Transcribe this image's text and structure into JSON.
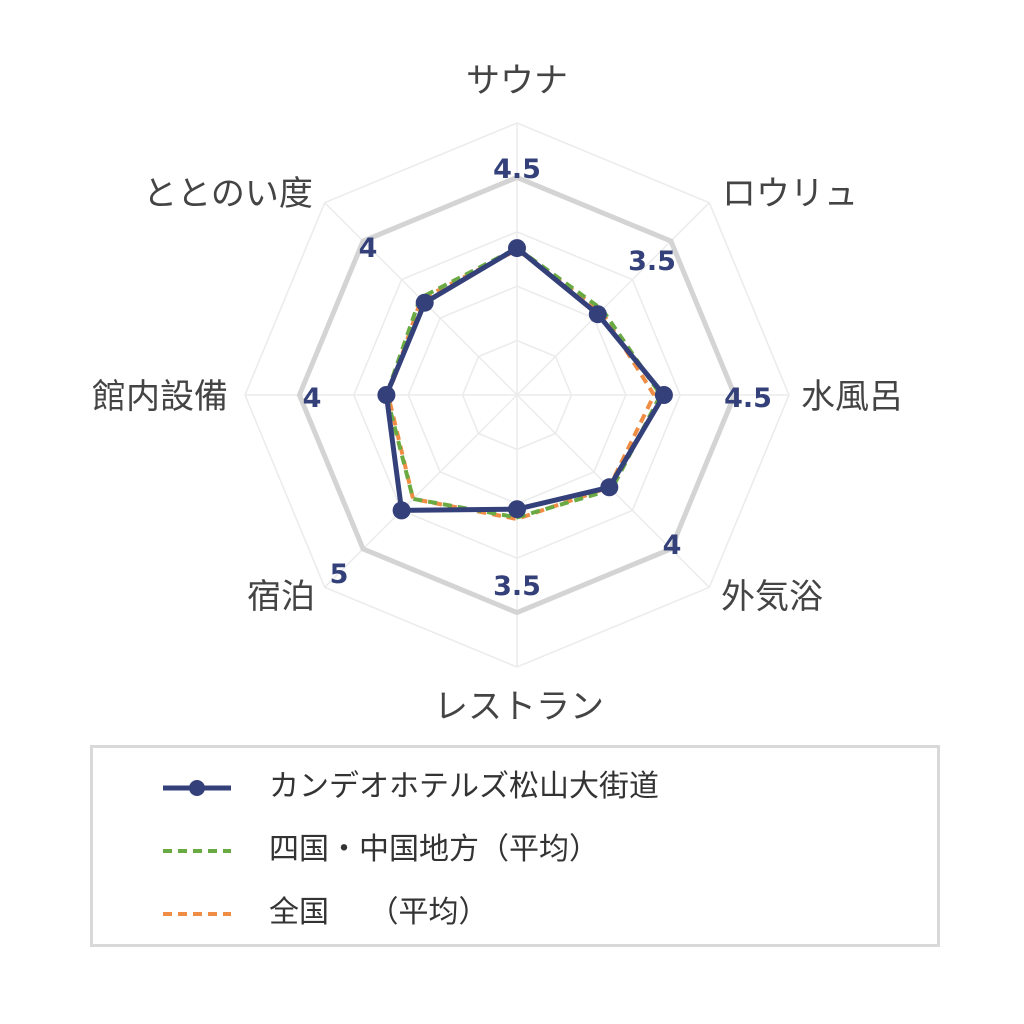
{
  "chart_data": {
    "type": "radar",
    "axes": [
      "サウナ",
      "ロウリュ",
      "水風呂",
      "外気浴",
      "レストラン",
      "宿泊",
      "館内設備",
      "ととのい度"
    ],
    "series": [
      {
        "name": "カンデオホテルズ松山大街道",
        "values": [
          4.5,
          3.5,
          4.5,
          4,
          3.5,
          5,
          4,
          4
        ],
        "color": "#34407a",
        "style": "solid",
        "markers": true
      },
      {
        "name": "四国・中国地方（平均）",
        "values": [
          4.5,
          3.7,
          4.4,
          4.1,
          3.75,
          4.5,
          4.0,
          4.2
        ],
        "color": "#6aaa43",
        "style": "dashed",
        "markers": false
      },
      {
        "name": "全国　 （平均）",
        "values": [
          4.45,
          3.65,
          4.2,
          4.0,
          3.8,
          4.5,
          3.95,
          4.15
        ],
        "color": "#f08d45",
        "style": "dashed",
        "markers": false
      }
    ],
    "value_labels": [
      "4.5",
      "3.5",
      "4.5",
      "4",
      "3.5",
      "5",
      "4",
      "4"
    ],
    "value_label_color": "#34407a",
    "rlim": [
      0,
      5
    ],
    "grid_levels": 5,
    "grid": true,
    "highlight_ring": 5,
    "legend_position": "bottom"
  }
}
